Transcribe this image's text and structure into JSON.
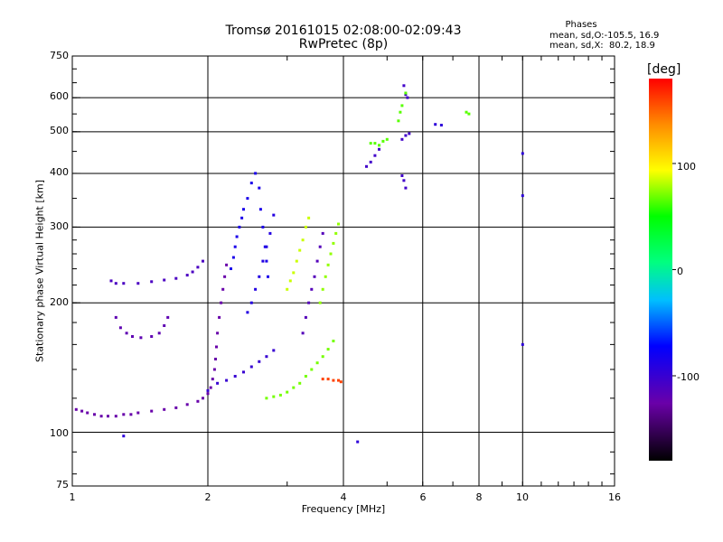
{
  "chart_data": {
    "type": "scatter",
    "title": "Tromsø 20161015 02:08:00-02:09:43",
    "subtitle": "RwPretec (8p)",
    "xlabel": "Frequency [MHz]",
    "ylabel": "Stationary phase Virtual Height [km]",
    "x_scale": "log",
    "y_scale": "log",
    "xlim": [
      1,
      16
    ],
    "ylim": [
      75,
      750
    ],
    "grid": true,
    "x_ticks": [
      "1",
      "2",
      "4",
      "6",
      "8",
      "10",
      "16"
    ],
    "y_ticks": [
      "75",
      "100",
      "200",
      "300",
      "400",
      "500",
      "600",
      "750"
    ],
    "colorbar": {
      "label": "[deg]",
      "range": [
        -180,
        180
      ],
      "ticks": [
        "100",
        "0",
        "-100"
      ]
    },
    "stats": {
      "title": "Phases",
      "line1": "mean, sd,O:-105.5, 16.9",
      "line2": "mean, sd,X:  80.2, 18.9"
    },
    "series": [
      {
        "phase": -125,
        "points": [
          [
            1.02,
            113
          ],
          [
            1.05,
            112
          ],
          [
            1.08,
            111
          ],
          [
            1.12,
            110
          ],
          [
            1.16,
            109
          ],
          [
            1.2,
            109
          ],
          [
            1.25,
            109
          ],
          [
            1.3,
            110
          ],
          [
            1.35,
            110
          ],
          [
            1.4,
            111
          ],
          [
            1.5,
            112
          ],
          [
            1.6,
            113
          ],
          [
            1.7,
            114
          ],
          [
            1.8,
            116
          ],
          [
            1.9,
            118
          ],
          [
            1.95,
            120
          ],
          [
            2.0,
            123
          ],
          [
            2.03,
            127
          ],
          [
            2.05,
            133
          ],
          [
            2.07,
            140
          ],
          [
            2.08,
            148
          ],
          [
            2.09,
            158
          ],
          [
            2.1,
            170
          ],
          [
            2.12,
            185
          ],
          [
            2.14,
            200
          ],
          [
            2.16,
            215
          ],
          [
            2.18,
            230
          ],
          [
            2.2,
            245
          ]
        ]
      },
      {
        "phase": -110,
        "points": [
          [
            1.22,
            225
          ],
          [
            1.25,
            222
          ],
          [
            1.3,
            222
          ],
          [
            1.4,
            222
          ],
          [
            1.5,
            224
          ],
          [
            1.6,
            226
          ],
          [
            1.7,
            228
          ],
          [
            1.8,
            232
          ],
          [
            1.85,
            236
          ],
          [
            1.9,
            242
          ],
          [
            1.95,
            250
          ]
        ]
      },
      {
        "phase": -120,
        "points": [
          [
            1.25,
            185
          ],
          [
            1.28,
            175
          ],
          [
            1.32,
            170
          ],
          [
            1.36,
            167
          ],
          [
            1.42,
            166
          ],
          [
            1.5,
            167
          ],
          [
            1.56,
            170
          ],
          [
            1.6,
            177
          ],
          [
            1.63,
            185
          ]
        ]
      },
      {
        "phase": -100,
        "points": [
          [
            2.0,
            125
          ],
          [
            2.1,
            130
          ],
          [
            2.2,
            132
          ],
          [
            2.3,
            135
          ],
          [
            2.4,
            138
          ],
          [
            2.5,
            142
          ],
          [
            2.6,
            146
          ],
          [
            2.7,
            150
          ],
          [
            2.8,
            155
          ]
        ]
      },
      {
        "phase": -85,
        "points": [
          [
            2.25,
            240
          ],
          [
            2.28,
            255
          ],
          [
            2.3,
            270
          ],
          [
            2.32,
            285
          ],
          [
            2.35,
            300
          ],
          [
            2.38,
            315
          ],
          [
            2.4,
            330
          ],
          [
            2.45,
            350
          ],
          [
            2.5,
            380
          ],
          [
            2.55,
            400
          ],
          [
            2.6,
            370
          ],
          [
            2.62,
            330
          ],
          [
            2.65,
            300
          ],
          [
            2.68,
            270
          ],
          [
            2.7,
            250
          ],
          [
            2.72,
            230
          ]
        ]
      },
      {
        "phase": -90,
        "points": [
          [
            2.45,
            190
          ],
          [
            2.5,
            200
          ],
          [
            2.55,
            215
          ],
          [
            2.6,
            230
          ],
          [
            2.65,
            250
          ],
          [
            2.7,
            270
          ],
          [
            2.75,
            290
          ],
          [
            2.8,
            320
          ]
        ]
      },
      {
        "phase": 70,
        "points": [
          [
            2.7,
            120
          ],
          [
            2.8,
            121
          ],
          [
            2.9,
            122
          ],
          [
            3.0,
            124
          ],
          [
            3.1,
            127
          ],
          [
            3.2,
            130
          ],
          [
            3.3,
            135
          ],
          [
            3.4,
            140
          ],
          [
            3.5,
            145
          ],
          [
            3.6,
            150
          ],
          [
            3.7,
            156
          ],
          [
            3.8,
            163
          ]
        ]
      },
      {
        "phase": 85,
        "points": [
          [
            3.0,
            215
          ],
          [
            3.05,
            225
          ],
          [
            3.1,
            235
          ],
          [
            3.15,
            250
          ],
          [
            3.2,
            265
          ],
          [
            3.25,
            280
          ],
          [
            3.3,
            300
          ],
          [
            3.35,
            315
          ]
        ]
      },
      {
        "phase": 75,
        "points": [
          [
            3.55,
            200
          ],
          [
            3.6,
            215
          ],
          [
            3.65,
            230
          ],
          [
            3.7,
            245
          ],
          [
            3.75,
            260
          ],
          [
            3.8,
            275
          ],
          [
            3.85,
            290
          ],
          [
            3.9,
            305
          ]
        ]
      },
      {
        "phase": -115,
        "points": [
          [
            3.25,
            170
          ],
          [
            3.3,
            185
          ],
          [
            3.35,
            200
          ],
          [
            3.4,
            215
          ],
          [
            3.45,
            230
          ],
          [
            3.5,
            250
          ],
          [
            3.55,
            270
          ],
          [
            3.6,
            290
          ]
        ]
      },
      {
        "phase": 160,
        "points": [
          [
            3.6,
            133
          ],
          [
            3.7,
            133
          ],
          [
            3.8,
            132
          ],
          [
            3.9,
            132
          ],
          [
            3.95,
            131
          ]
        ]
      },
      {
        "phase": -105,
        "points": [
          [
            4.5,
            415
          ],
          [
            4.6,
            425
          ],
          [
            4.7,
            440
          ],
          [
            4.8,
            455
          ],
          [
            5.4,
            480
          ],
          [
            5.5,
            490
          ],
          [
            5.6,
            495
          ],
          [
            5.45,
            640
          ],
          [
            5.5,
            610
          ],
          [
            5.55,
            600
          ],
          [
            5.4,
            395
          ],
          [
            5.45,
            385
          ],
          [
            5.5,
            370
          ]
        ]
      },
      {
        "phase": 65,
        "points": [
          [
            4.6,
            470
          ],
          [
            4.7,
            470
          ],
          [
            4.8,
            465
          ],
          [
            4.9,
            475
          ],
          [
            5.0,
            480
          ],
          [
            5.3,
            530
          ],
          [
            5.35,
            555
          ],
          [
            5.4,
            575
          ],
          [
            5.5,
            615
          ],
          [
            7.5,
            555
          ],
          [
            7.6,
            550
          ]
        ]
      },
      {
        "phase": -95,
        "points": [
          [
            6.4,
            520
          ],
          [
            6.6,
            518
          ],
          [
            10.0,
            445
          ],
          [
            10.0,
            355
          ],
          [
            10.0,
            160
          ],
          [
            4.3,
            95
          ],
          [
            1.3,
            98
          ]
        ]
      }
    ]
  }
}
